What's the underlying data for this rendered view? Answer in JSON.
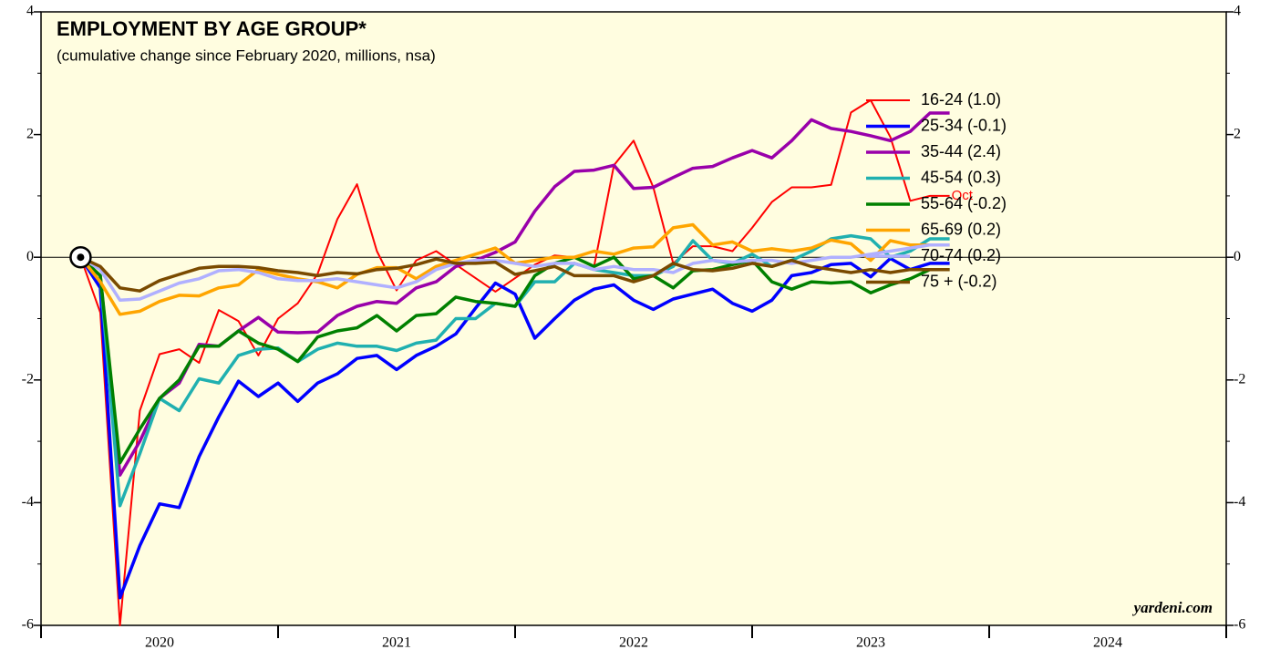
{
  "chart_data": {
    "type": "line",
    "title": "EMPLOYMENT BY AGE GROUP*",
    "subtitle": "(cumulative change since February 2020, millions, nsa)",
    "annotations": {
      "end_label": "Oct",
      "source": "yardeni.com"
    },
    "x": [
      2020.167,
      2020.25,
      2020.333,
      2020.417,
      2020.5,
      2020.583,
      2020.667,
      2020.75,
      2020.833,
      2020.917,
      2021.0,
      2021.083,
      2021.167,
      2021.25,
      2021.333,
      2021.417,
      2021.5,
      2021.583,
      2021.667,
      2021.75,
      2021.833,
      2021.917,
      2022.0,
      2022.083,
      2022.167,
      2022.25,
      2022.333,
      2022.417,
      2022.5,
      2022.583,
      2022.667,
      2022.75,
      2022.833,
      2022.917,
      2023.0,
      2023.083,
      2023.167,
      2023.25,
      2023.333,
      2023.417,
      2023.5,
      2023.583,
      2023.667,
      2023.75,
      2023.833
    ],
    "series": [
      {
        "name": "16-24 (1.0)",
        "color": "#ff0000",
        "width": 2,
        "values": [
          0,
          -0.9,
          -6.0,
          -2.5,
          -1.58,
          -1.5,
          -1.72,
          -0.86,
          -1.04,
          -1.6,
          -1.0,
          -0.75,
          -0.27,
          0.62,
          1.19,
          0.1,
          -0.54,
          -0.05,
          0.1,
          -0.12,
          -0.34,
          -0.56,
          -0.34,
          -0.12,
          0.03,
          0,
          -0.15,
          1.5,
          1.9,
          1.14,
          -0.1,
          0.18,
          0.18,
          0.1,
          0.48,
          0.9,
          1.14,
          1.14,
          1.18,
          2.36,
          2.56,
          1.96,
          0.92,
          1.0,
          1.0
        ]
      },
      {
        "name": "25-34 (-0.1)",
        "color": "#0000ff",
        "width": 3.5,
        "values": [
          0,
          -0.5,
          -5.55,
          -4.7,
          -4.02,
          -4.08,
          -3.25,
          -2.6,
          -2.02,
          -2.27,
          -2.05,
          -2.35,
          -2.05,
          -1.9,
          -1.65,
          -1.6,
          -1.83,
          -1.6,
          -1.45,
          -1.25,
          -0.83,
          -0.42,
          -0.6,
          -1.32,
          -1.0,
          -0.7,
          -0.52,
          -0.45,
          -0.7,
          -0.85,
          -0.68,
          -0.6,
          -0.52,
          -0.75,
          -0.88,
          -0.7,
          -0.3,
          -0.25,
          -0.12,
          -0.1,
          -0.32,
          -0.02,
          -0.2,
          -0.1,
          -0.1
        ]
      },
      {
        "name": "35-44 (2.4)",
        "color": "#9900aa",
        "width": 3.5,
        "values": [
          0,
          -0.3,
          -3.55,
          -3.0,
          -2.3,
          -2.05,
          -1.42,
          -1.45,
          -1.2,
          -0.98,
          -1.22,
          -1.23,
          -1.22,
          -0.95,
          -0.8,
          -0.72,
          -0.75,
          -0.5,
          -0.4,
          -0.15,
          -0.05,
          0.08,
          0.25,
          0.75,
          1.15,
          1.4,
          1.42,
          1.5,
          1.12,
          1.14,
          1.3,
          1.45,
          1.48,
          1.62,
          1.74,
          1.62,
          1.9,
          2.24,
          2.1,
          2.05,
          1.98,
          1.9,
          2.05,
          2.35,
          2.35
        ]
      },
      {
        "name": "45-54 (0.3)",
        "color": "#20b0b0",
        "width": 3.5,
        "values": [
          0,
          -0.3,
          -4.05,
          -3.2,
          -2.3,
          -2.5,
          -1.98,
          -2.05,
          -1.6,
          -1.5,
          -1.48,
          -1.7,
          -1.5,
          -1.4,
          -1.45,
          -1.45,
          -1.52,
          -1.4,
          -1.35,
          -1.0,
          -1.0,
          -0.75,
          -0.8,
          -0.4,
          -0.4,
          -0.1,
          -0.2,
          -0.25,
          -0.3,
          -0.3,
          -0.15,
          0.27,
          -0.05,
          -0.1,
          0.05,
          -0.15,
          -0.05,
          0.1,
          0.3,
          0.35,
          0.3,
          0.0,
          0.1,
          0.3,
          0.3
        ]
      },
      {
        "name": "55-64 (-0.2)",
        "color": "#008000",
        "width": 3.5,
        "values": [
          0,
          -0.3,
          -3.35,
          -2.8,
          -2.3,
          -2.0,
          -1.45,
          -1.45,
          -1.2,
          -1.4,
          -1.5,
          -1.7,
          -1.3,
          -1.2,
          -1.15,
          -0.95,
          -1.2,
          -0.95,
          -0.92,
          -0.65,
          -0.72,
          -0.75,
          -0.8,
          -0.3,
          -0.1,
          0.0,
          -0.15,
          0.0,
          -0.35,
          -0.3,
          -0.5,
          -0.22,
          -0.2,
          -0.12,
          -0.05,
          -0.4,
          -0.52,
          -0.4,
          -0.42,
          -0.4,
          -0.58,
          -0.45,
          -0.35,
          -0.2,
          -0.2
        ]
      },
      {
        "name": "65-69 (0.2)",
        "color": "#ffa500",
        "width": 3.5,
        "values": [
          0,
          -0.4,
          -0.93,
          -0.88,
          -0.72,
          -0.62,
          -0.63,
          -0.5,
          -0.45,
          -0.2,
          -0.28,
          -0.35,
          -0.4,
          -0.5,
          -0.28,
          -0.17,
          -0.17,
          -0.35,
          -0.15,
          -0.05,
          0.05,
          0.15,
          -0.1,
          -0.05,
          0.0,
          0.0,
          0.1,
          0.05,
          0.15,
          0.17,
          0.48,
          0.53,
          0.2,
          0.25,
          0.1,
          0.14,
          0.1,
          0.15,
          0.28,
          0.22,
          -0.05,
          0.27,
          0.2,
          0.2,
          0.2
        ]
      },
      {
        "name": "70-74 (0.2)",
        "color": "#b0b0ff",
        "width": 3.5,
        "values": [
          0,
          -0.2,
          -0.7,
          -0.68,
          -0.55,
          -0.42,
          -0.35,
          -0.22,
          -0.2,
          -0.25,
          -0.35,
          -0.38,
          -0.38,
          -0.35,
          -0.4,
          -0.45,
          -0.5,
          -0.4,
          -0.2,
          -0.1,
          -0.05,
          -0.05,
          -0.1,
          -0.15,
          -0.1,
          -0.1,
          -0.2,
          -0.15,
          -0.2,
          -0.2,
          -0.25,
          -0.1,
          -0.05,
          -0.08,
          -0.05,
          -0.05,
          -0.1,
          -0.05,
          0.0,
          0.0,
          0.05,
          0.1,
          0.15,
          0.2,
          0.2
        ]
      },
      {
        "name": "75 + (-0.2)",
        "color": "#7a4a00",
        "width": 3.5,
        "values": [
          0,
          -0.15,
          -0.5,
          -0.55,
          -0.38,
          -0.28,
          -0.18,
          -0.15,
          -0.15,
          -0.17,
          -0.22,
          -0.25,
          -0.3,
          -0.25,
          -0.27,
          -0.2,
          -0.18,
          -0.12,
          -0.03,
          -0.1,
          -0.1,
          -0.08,
          -0.28,
          -0.22,
          -0.15,
          -0.3,
          -0.3,
          -0.3,
          -0.4,
          -0.3,
          -0.1,
          -0.2,
          -0.22,
          -0.18,
          -0.1,
          -0.15,
          -0.05,
          -0.15,
          -0.2,
          -0.25,
          -0.2,
          -0.25,
          -0.2,
          -0.2,
          -0.2
        ]
      }
    ],
    "xlim": [
      2020,
      2025
    ],
    "xticks": [
      {
        "value": 2020.5,
        "label": "2020"
      },
      {
        "value": 2021.5,
        "label": "2021"
      },
      {
        "value": 2022.5,
        "label": "2022"
      },
      {
        "value": 2023.5,
        "label": "2023"
      },
      {
        "value": 2024.5,
        "label": "2024"
      }
    ],
    "ylim": [
      -6,
      4
    ],
    "yticks": [
      -6,
      -4,
      -2,
      0,
      2,
      4
    ],
    "legend": "upper right",
    "background": "#fffde0"
  }
}
